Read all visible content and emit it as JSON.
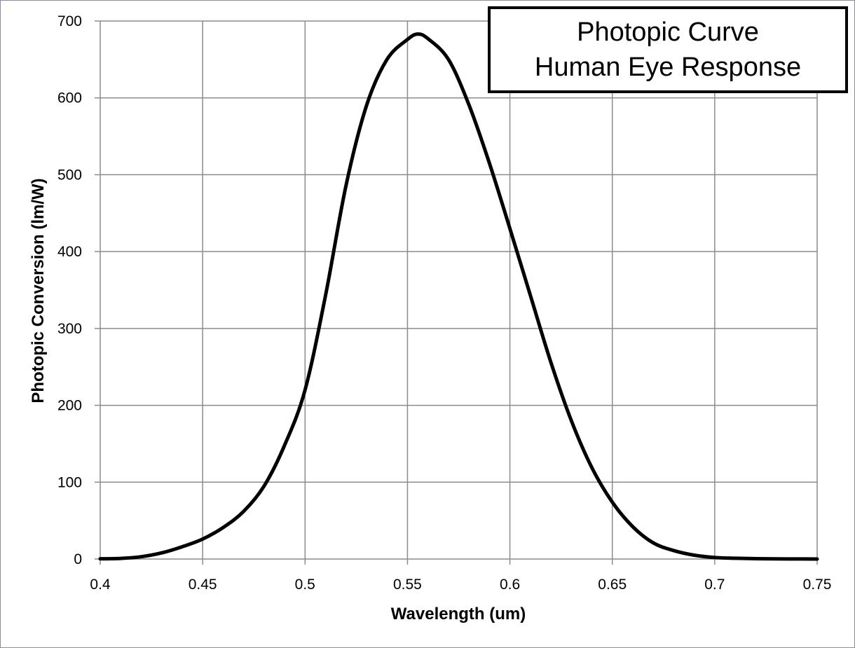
{
  "chart_data": {
    "type": "line",
    "title_lines": [
      "Photopic Curve",
      "Human Eye Response"
    ],
    "xlabel": "Wavelength (um)",
    "ylabel": "Photopic Conversion (lm/W)",
    "xlim": [
      0.4,
      0.75
    ],
    "ylim": [
      0,
      700
    ],
    "x_ticks": [
      "0.4",
      "0.45",
      "0.5",
      "0.55",
      "0.6",
      "0.65",
      "0.7",
      "0.75"
    ],
    "y_ticks": [
      "0",
      "100",
      "200",
      "300",
      "400",
      "500",
      "600",
      "700"
    ],
    "grid": true,
    "legend": "none",
    "series": [
      {
        "color": "#000000",
        "x": [
          0.4,
          0.41,
          0.42,
          0.43,
          0.44,
          0.45,
          0.46,
          0.47,
          0.48,
          0.49,
          0.5,
          0.51,
          0.52,
          0.53,
          0.54,
          0.55,
          0.555,
          0.56,
          0.57,
          0.58,
          0.59,
          0.6,
          0.61,
          0.62,
          0.63,
          0.64,
          0.65,
          0.66,
          0.67,
          0.68,
          0.69,
          0.7,
          0.71,
          0.72,
          0.73,
          0.74,
          0.75
        ],
        "y": [
          0.3,
          0.8,
          3,
          8,
          16,
          26,
          41,
          62,
          95,
          148,
          220,
          343,
          486,
          590,
          650,
          676,
          683,
          677,
          650,
          591,
          515,
          430,
          343,
          256,
          180,
          119,
          74,
          42,
          21,
          11,
          5,
          2,
          1,
          0.5,
          0.2,
          0.1,
          0
        ]
      }
    ]
  }
}
